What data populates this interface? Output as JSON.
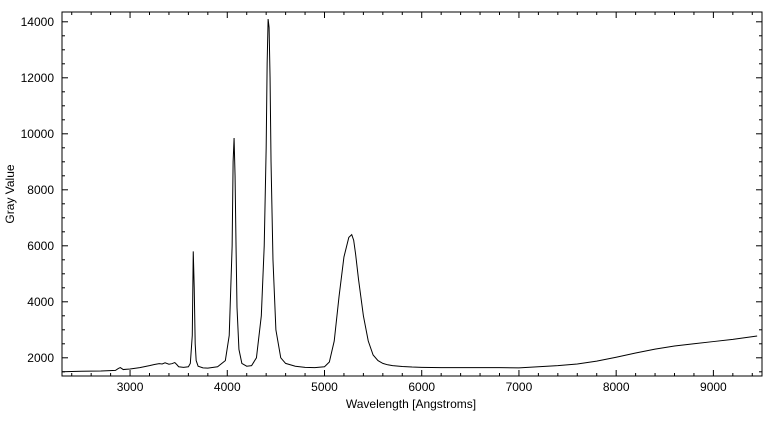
{
  "chart_data": {
    "type": "line",
    "title": "",
    "xlabel": "Wavelength [Angstroms]",
    "ylabel": "Gray Value",
    "xlim": [
      2300,
      9500
    ],
    "ylim": [
      1350,
      14350
    ],
    "x_ticks": [
      3000,
      4000,
      5000,
      6000,
      7000,
      8000,
      9000
    ],
    "x_tick_labels": [
      "3000",
      "4000",
      "5000",
      "6000",
      "7000",
      "8000",
      "9000"
    ],
    "y_ticks": [
      2000,
      4000,
      6000,
      8000,
      10000,
      12000,
      14000
    ],
    "y_tick_labels": [
      "2000",
      "4000",
      "6000",
      "8000",
      "10000",
      "12000",
      "14000"
    ],
    "grid": false,
    "legend": "none",
    "line_color": "#000000",
    "series": [
      {
        "x": [
          2300,
          2500,
          2700,
          2850,
          2880,
          2900,
          2930,
          3000,
          3100,
          3200,
          3250,
          3300,
          3330,
          3360,
          3400,
          3430,
          3460,
          3480,
          3500,
          3550,
          3600,
          3620,
          3640,
          3650,
          3660,
          3670,
          3680,
          3700,
          3750,
          3800,
          3900,
          3980,
          4020,
          4050,
          4060,
          4070,
          4080,
          4090,
          4100,
          4120,
          4150,
          4200,
          4250,
          4300,
          4350,
          4380,
          4400,
          4410,
          4420,
          4430,
          4440,
          4450,
          4470,
          4500,
          4550,
          4600,
          4700,
          4800,
          4900,
          5000,
          5050,
          5100,
          5150,
          5200,
          5250,
          5280,
          5300,
          5320,
          5350,
          5400,
          5450,
          5500,
          5550,
          5600,
          5650,
          5700,
          5800,
          5900,
          6000,
          6200,
          6500,
          6800,
          7000,
          7200,
          7400,
          7600,
          7800,
          8000,
          8200,
          8400,
          8600,
          8800,
          9000,
          9200,
          9450
        ],
        "y": [
          1500,
          1520,
          1530,
          1550,
          1620,
          1650,
          1580,
          1600,
          1650,
          1720,
          1760,
          1790,
          1780,
          1820,
          1770,
          1790,
          1830,
          1760,
          1680,
          1660,
          1680,
          1800,
          2800,
          5800,
          4500,
          2500,
          1900,
          1700,
          1640,
          1630,
          1680,
          1900,
          2800,
          6000,
          9000,
          9850,
          8500,
          6000,
          3800,
          2300,
          1800,
          1700,
          1720,
          2000,
          3500,
          6000,
          9500,
          12500,
          14100,
          13800,
          12000,
          9000,
          5500,
          3000,
          2000,
          1800,
          1700,
          1660,
          1650,
          1680,
          1850,
          2600,
          4200,
          5600,
          6300,
          6400,
          6200,
          5700,
          4800,
          3500,
          2600,
          2100,
          1900,
          1800,
          1750,
          1720,
          1690,
          1670,
          1660,
          1650,
          1650,
          1650,
          1640,
          1680,
          1720,
          1780,
          1880,
          2020,
          2170,
          2310,
          2420,
          2500,
          2580,
          2660,
          2780
        ]
      }
    ]
  }
}
